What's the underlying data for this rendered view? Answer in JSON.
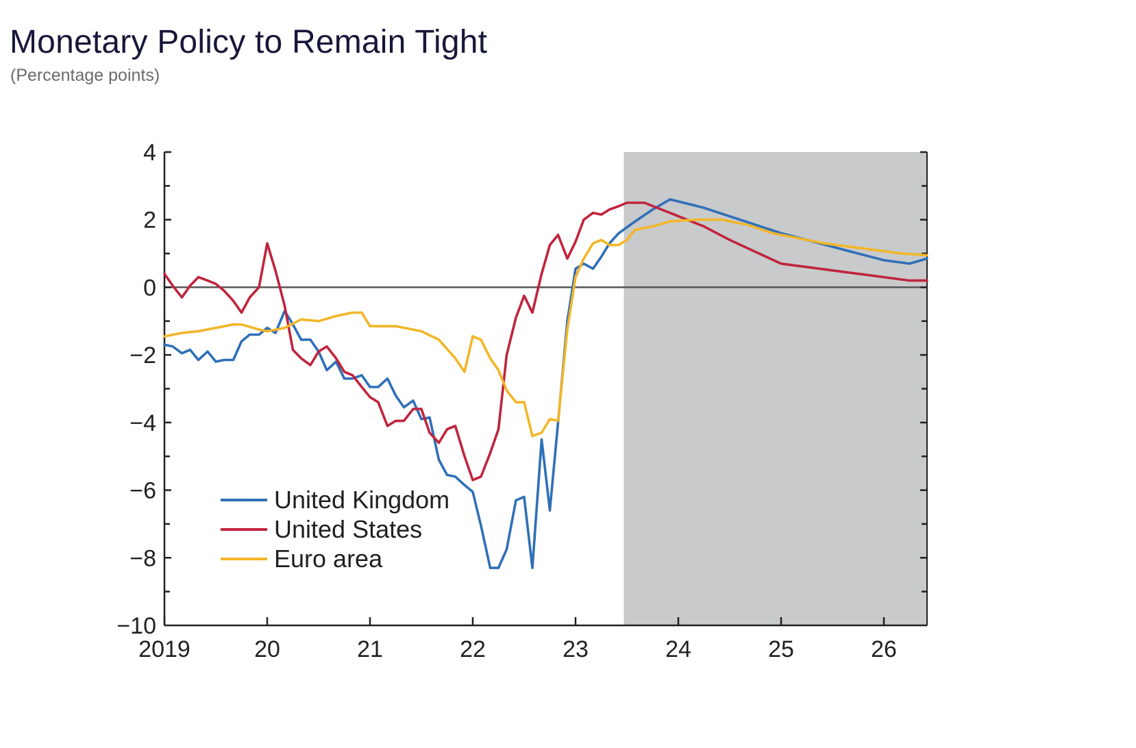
{
  "title": "Monetary Policy to Remain Tight",
  "subtitle": "(Percentage points)",
  "chart_data": {
    "type": "line",
    "title": "Monetary Policy to Remain Tight",
    "subtitle": "(Percentage points)",
    "xlabel": "",
    "ylabel": "",
    "xlim": [
      2019,
      2026.42
    ],
    "ylim": [
      -10,
      4
    ],
    "y_ticks": [
      4,
      2,
      0,
      -2,
      -4,
      -6,
      -8,
      -10
    ],
    "y_tick_labels": [
      "4",
      "2",
      "0",
      "−2",
      "−4",
      "−6",
      "−8",
      "−10"
    ],
    "x_ticks": [
      2019,
      2020,
      2021,
      2022,
      2023,
      2024,
      2025,
      2026
    ],
    "x_tick_labels": [
      "2019",
      "20",
      "21",
      "22",
      "23",
      "24",
      "25",
      "26"
    ],
    "zero_line": 0,
    "projection_shade": {
      "from": 2023.47,
      "to": 2026.42,
      "color": "#c9cacc"
    },
    "legend_position": "lower-left",
    "series": [
      {
        "name": "United Kingdom",
        "color": "#2f6fb7",
        "x": [
          2019.0,
          2019.08,
          2019.17,
          2019.25,
          2019.33,
          2019.42,
          2019.5,
          2019.58,
          2019.67,
          2019.75,
          2019.83,
          2019.92,
          2020.0,
          2020.08,
          2020.17,
          2020.25,
          2020.33,
          2020.42,
          2020.5,
          2020.58,
          2020.67,
          2020.75,
          2020.83,
          2020.92,
          2021.0,
          2021.08,
          2021.17,
          2021.25,
          2021.33,
          2021.42,
          2021.5,
          2021.58,
          2021.67,
          2021.75,
          2021.83,
          2021.92,
          2022.0,
          2022.08,
          2022.17,
          2022.25,
          2022.33,
          2022.42,
          2022.5,
          2022.58,
          2022.67,
          2022.75,
          2022.83,
          2022.92,
          2023.0,
          2023.08,
          2023.17,
          2023.25,
          2023.33,
          2023.42,
          2023.58,
          2023.75,
          2023.92,
          2024.25,
          2024.5,
          2024.75,
          2025.0,
          2025.25,
          2025.5,
          2025.75,
          2026.0,
          2026.25,
          2026.42
        ],
        "values": [
          -1.7,
          -1.75,
          -1.95,
          -1.85,
          -2.15,
          -1.9,
          -2.2,
          -2.15,
          -2.15,
          -1.6,
          -1.4,
          -1.4,
          -1.2,
          -1.35,
          -0.7,
          -1.1,
          -1.55,
          -1.55,
          -1.9,
          -2.45,
          -2.2,
          -2.7,
          -2.7,
          -2.6,
          -2.95,
          -2.95,
          -2.7,
          -3.2,
          -3.55,
          -3.35,
          -3.9,
          -3.85,
          -5.1,
          -5.55,
          -5.6,
          -5.85,
          -6.05,
          -7.05,
          -8.3,
          -8.3,
          -7.75,
          -6.3,
          -6.2,
          -8.3,
          -4.5,
          -6.6,
          -4.0,
          -1.0,
          0.55,
          0.7,
          0.55,
          0.9,
          1.3,
          1.6,
          1.95,
          2.3,
          2.6,
          2.35,
          2.1,
          1.85,
          1.6,
          1.4,
          1.2,
          1.0,
          0.8,
          0.7,
          0.85
        ]
      },
      {
        "name": "United States",
        "color": "#c0243c",
        "x": [
          2019.0,
          2019.08,
          2019.17,
          2019.25,
          2019.33,
          2019.42,
          2019.5,
          2019.58,
          2019.67,
          2019.75,
          2019.83,
          2019.92,
          2020.0,
          2020.08,
          2020.17,
          2020.25,
          2020.33,
          2020.42,
          2020.5,
          2020.58,
          2020.67,
          2020.75,
          2020.83,
          2020.92,
          2021.0,
          2021.08,
          2021.17,
          2021.25,
          2021.33,
          2021.42,
          2021.5,
          2021.58,
          2021.67,
          2021.75,
          2021.83,
          2021.92,
          2022.0,
          2022.08,
          2022.17,
          2022.25,
          2022.33,
          2022.42,
          2022.5,
          2022.58,
          2022.67,
          2022.75,
          2022.83,
          2022.92,
          2023.0,
          2023.08,
          2023.17,
          2023.25,
          2023.33,
          2023.42,
          2023.5,
          2023.67,
          2023.92,
          2024.25,
          2024.5,
          2024.75,
          2025.0,
          2025.25,
          2025.5,
          2025.75,
          2026.0,
          2026.25,
          2026.42
        ],
        "values": [
          0.4,
          0.05,
          -0.3,
          0.05,
          0.3,
          0.2,
          0.1,
          -0.1,
          -0.4,
          -0.75,
          -0.3,
          0.0,
          1.3,
          0.5,
          -0.55,
          -1.85,
          -2.1,
          -2.3,
          -1.9,
          -1.75,
          -2.1,
          -2.5,
          -2.6,
          -2.95,
          -3.25,
          -3.4,
          -4.1,
          -3.95,
          -3.95,
          -3.6,
          -3.6,
          -4.3,
          -4.6,
          -4.2,
          -4.1,
          -5.0,
          -5.7,
          -5.6,
          -4.9,
          -4.2,
          -2.0,
          -0.9,
          -0.25,
          -0.75,
          0.4,
          1.25,
          1.55,
          0.85,
          1.35,
          2.0,
          2.2,
          2.15,
          2.3,
          2.4,
          2.5,
          2.5,
          2.2,
          1.8,
          1.4,
          1.05,
          0.7,
          0.6,
          0.5,
          0.4,
          0.3,
          0.2,
          0.2
        ]
      },
      {
        "name": "Euro area",
        "color": "#f2b629",
        "x": [
          2019.0,
          2019.17,
          2019.33,
          2019.5,
          2019.67,
          2019.75,
          2019.92,
          2020.0,
          2020.17,
          2020.33,
          2020.5,
          2020.67,
          2020.83,
          2020.92,
          2021.0,
          2021.25,
          2021.5,
          2021.67,
          2021.83,
          2021.92,
          2022.0,
          2022.08,
          2022.17,
          2022.25,
          2022.33,
          2022.42,
          2022.5,
          2022.58,
          2022.67,
          2022.75,
          2022.83,
          2022.92,
          2023.0,
          2023.08,
          2023.17,
          2023.25,
          2023.33,
          2023.42,
          2023.5,
          2023.58,
          2023.75,
          2023.92,
          2024.17,
          2024.42,
          2024.67,
          2024.92,
          2025.17,
          2025.42,
          2025.67,
          2025.92,
          2026.17,
          2026.42
        ],
        "values": [
          -1.45,
          -1.35,
          -1.3,
          -1.2,
          -1.1,
          -1.1,
          -1.25,
          -1.3,
          -1.2,
          -0.95,
          -1.0,
          -0.85,
          -0.75,
          -0.75,
          -1.15,
          -1.15,
          -1.3,
          -1.55,
          -2.1,
          -2.5,
          -1.45,
          -1.55,
          -2.1,
          -2.45,
          -3.05,
          -3.4,
          -3.4,
          -4.4,
          -4.3,
          -3.9,
          -3.95,
          -1.25,
          0.3,
          0.85,
          1.3,
          1.4,
          1.25,
          1.25,
          1.4,
          1.7,
          1.8,
          1.95,
          2.0,
          2.0,
          1.85,
          1.6,
          1.45,
          1.3,
          1.2,
          1.1,
          1.0,
          0.95
        ]
      }
    ]
  }
}
